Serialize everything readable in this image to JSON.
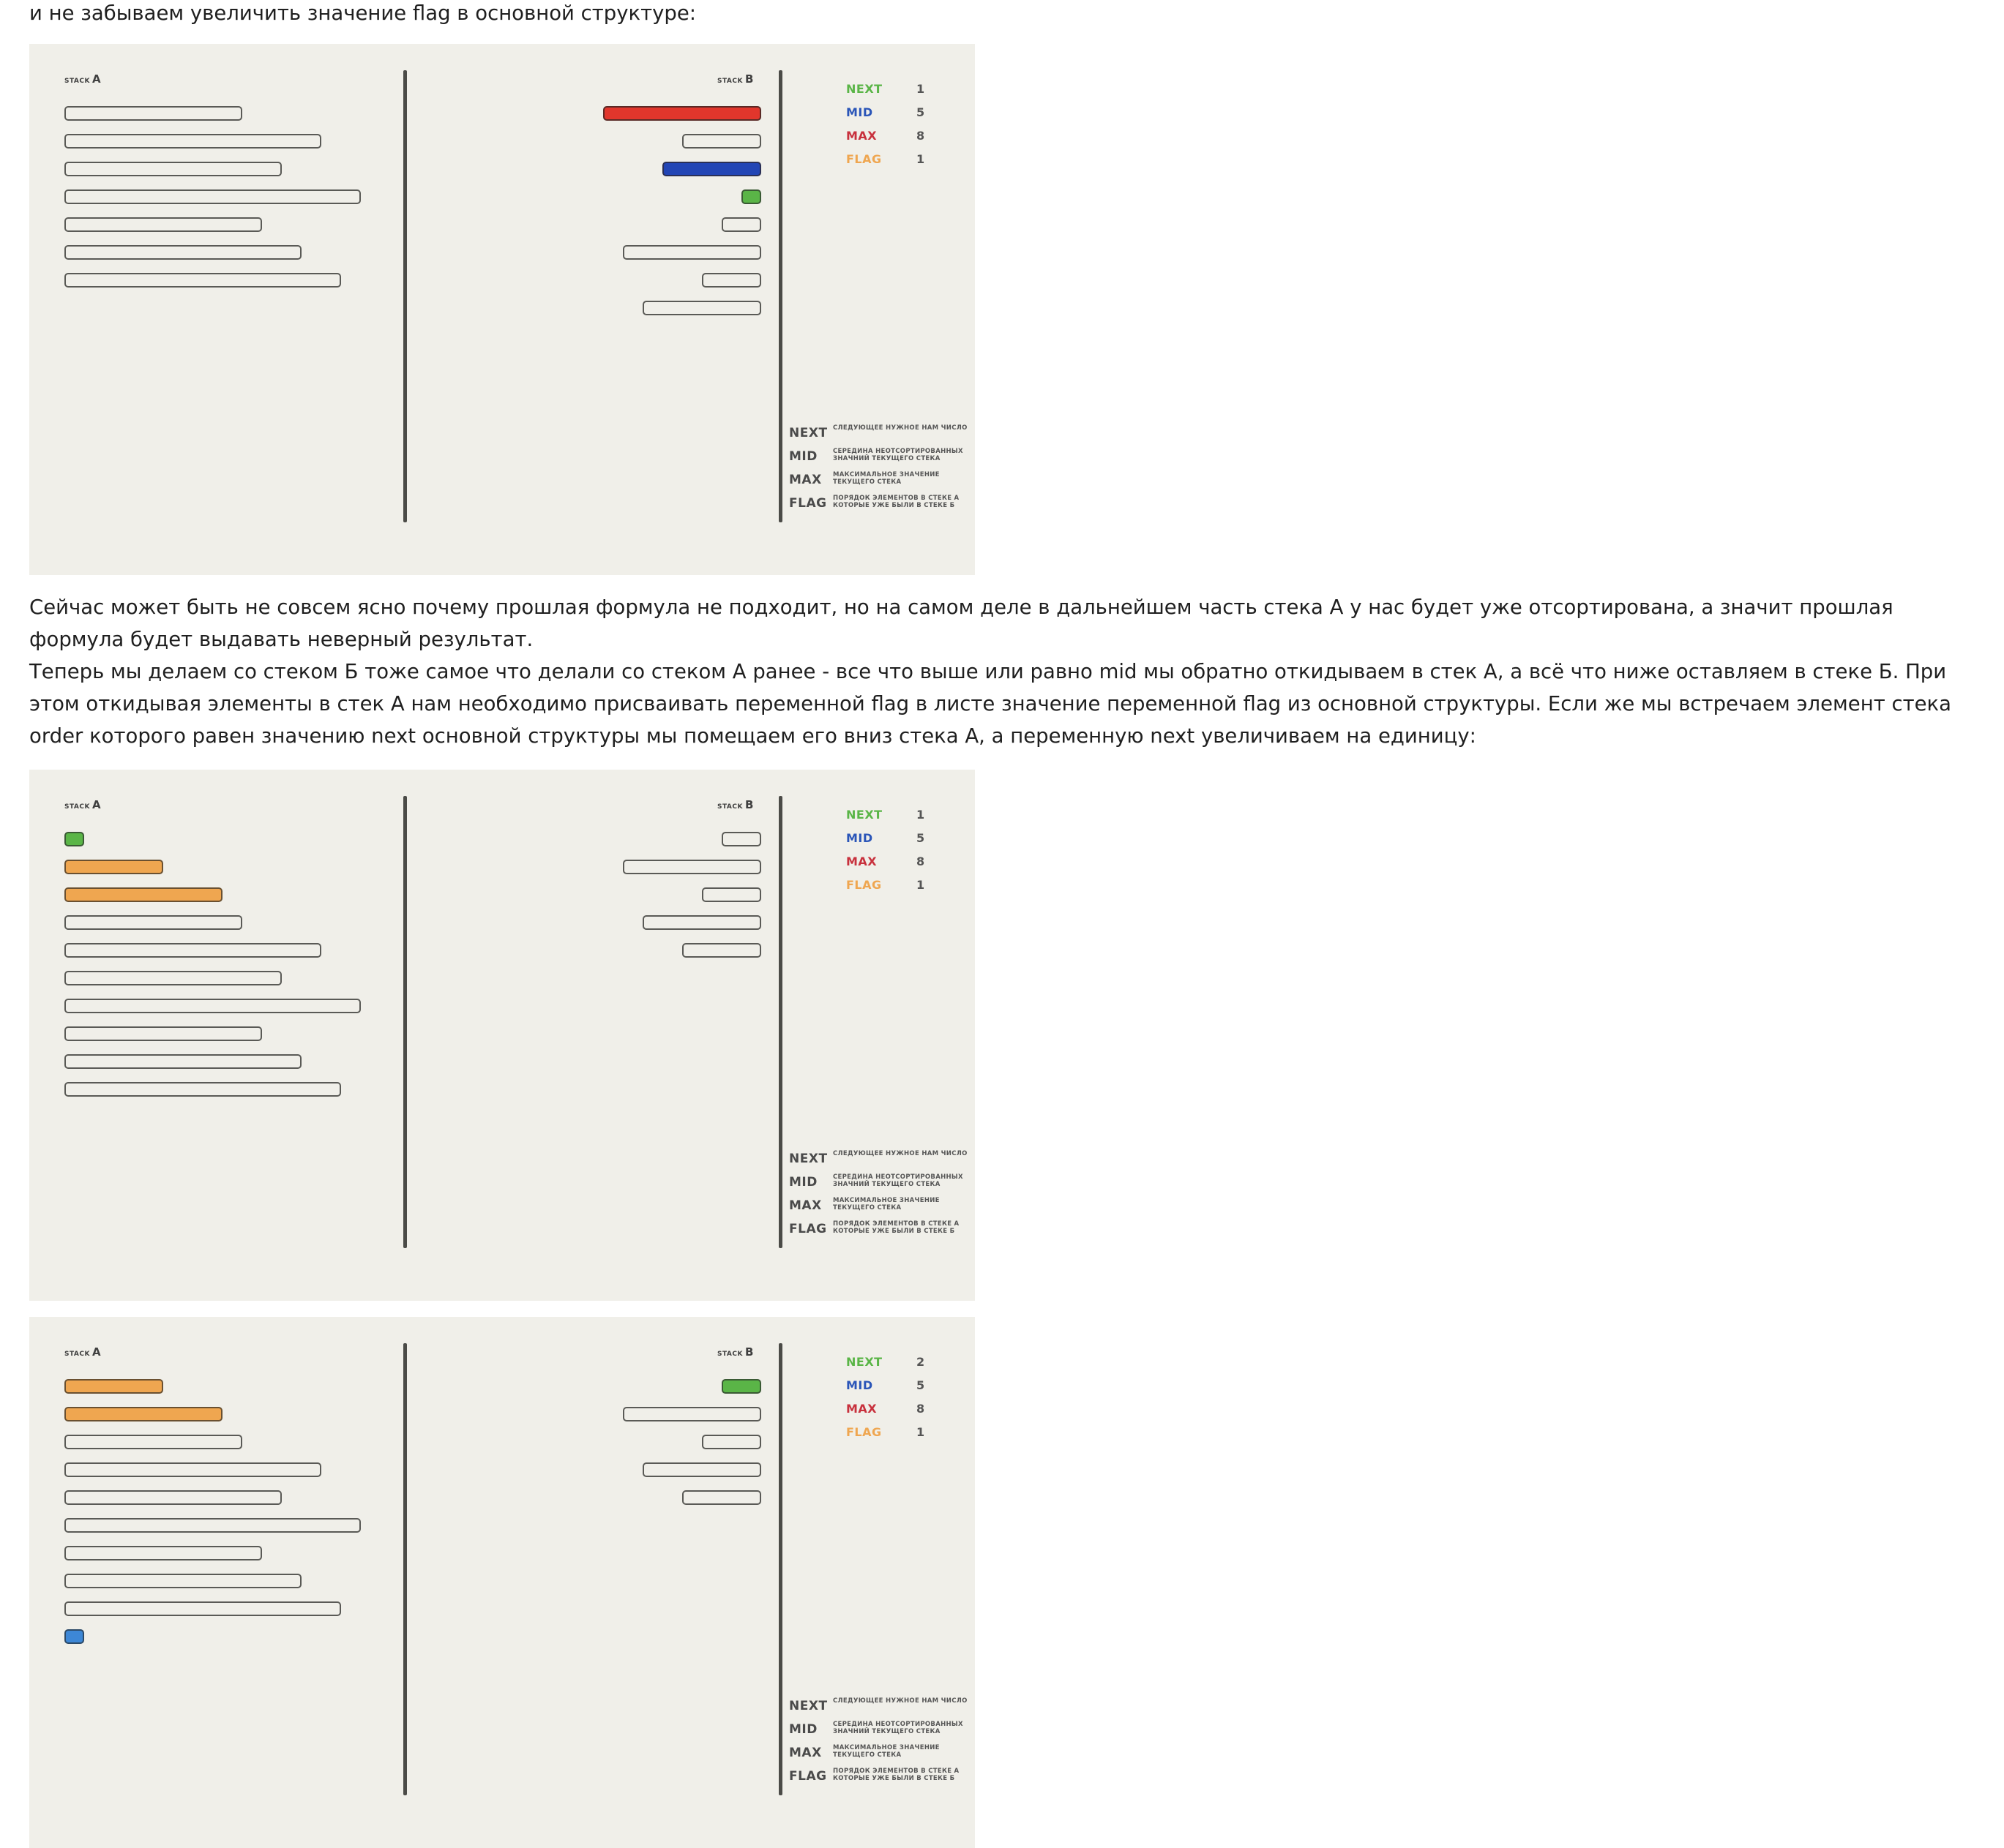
{
  "text": {
    "intro": "и не забываем увеличить значение flag в основной структуре:",
    "para2": "Сейчас может быть не совсем ясно почему прошлая формула не подходит, но на самом деле в дальнейшем часть стека А у нас будет уже отсортирована, а значит прошлая формула будет выдавать неверный результат.\nТеперь мы делаем со стеком Б тоже самое что делали со стеком А ранее - все что выше или равно mid мы обратно откидываем в стек А, а всё что ниже оставляем в стеке Б. При этом откидывая элементы в стек А нам необходимо присваивать переменной flag в листе значение переменной flag из основной структуры. Если же мы встречаем элемент стека order которого равен значению next основной структуры мы помещаем его вниз стека А, а переменную next увеличиваем на единицу:"
  },
  "colors": {
    "next": "#5ab547",
    "mid": "#2a55b8",
    "max": "#c8313d",
    "flag": "#efa650",
    "bg": "#f0efe9"
  },
  "labels": {
    "stack_small": "STACK",
    "stack_a": "A",
    "stack_b": "B"
  },
  "legend": [
    {
      "key": "NEXT",
      "desc": "СЛЕДУЮЩЕЕ НУЖНОЕ НАМ ЧИСЛО"
    },
    {
      "key": "MID",
      "desc": "СЕРЕДИНА НЕОТСОРТИРОВАННЫХ ЗНАЧНИЙ ТЕКУЩЕГО СТЕКА"
    },
    {
      "key": "MAX",
      "desc": "МАКСИМАЛЬНОЕ ЗНАЧЕНИЕ ТЕКУЩЕГО СТЕКА"
    },
    {
      "key": "FLAG",
      "desc": "ПОРЯДОК ЭЛЕМЕНТОВ В СТЕКЕ А КОТОРЫЕ УЖЕ БЫЛИ В СТЕКЕ Б"
    }
  ],
  "figures": [
    {
      "vars": {
        "next": "1",
        "mid": "5",
        "max": "8",
        "flag": "1"
      },
      "stack_a": [
        {
          "v": 9,
          "c": ""
        },
        {
          "v": 13,
          "c": ""
        },
        {
          "v": 11,
          "c": ""
        },
        {
          "v": 15,
          "c": ""
        },
        {
          "v": 10,
          "c": ""
        },
        {
          "v": 12,
          "c": ""
        },
        {
          "v": 14,
          "c": ""
        }
      ],
      "stack_b": [
        {
          "v": 8,
          "c": "red"
        },
        {
          "v": 4,
          "c": ""
        },
        {
          "v": 5,
          "c": "blue"
        },
        {
          "v": 1,
          "c": "green"
        },
        {
          "v": 2,
          "c": ""
        },
        {
          "v": 7,
          "c": ""
        },
        {
          "v": 3,
          "c": ""
        },
        {
          "v": 6,
          "c": ""
        }
      ]
    },
    {
      "vars": {
        "next": "1",
        "mid": "5",
        "max": "8",
        "flag": "1"
      },
      "stack_a": [
        {
          "v": 1,
          "c": "green"
        },
        {
          "v": 5,
          "c": "orange"
        },
        {
          "v": 8,
          "c": "orange"
        },
        {
          "v": 9,
          "c": ""
        },
        {
          "v": 13,
          "c": ""
        },
        {
          "v": 11,
          "c": ""
        },
        {
          "v": 15,
          "c": ""
        },
        {
          "v": 10,
          "c": ""
        },
        {
          "v": 12,
          "c": ""
        },
        {
          "v": 14,
          "c": ""
        }
      ],
      "stack_b": [
        {
          "v": 2,
          "c": ""
        },
        {
          "v": 7,
          "c": ""
        },
        {
          "v": 3,
          "c": ""
        },
        {
          "v": 6,
          "c": ""
        },
        {
          "v": 4,
          "c": ""
        }
      ]
    },
    {
      "vars": {
        "next": "2",
        "mid": "5",
        "max": "8",
        "flag": "1"
      },
      "stack_a": [
        {
          "v": 5,
          "c": "orange"
        },
        {
          "v": 8,
          "c": "orange"
        },
        {
          "v": 9,
          "c": ""
        },
        {
          "v": 13,
          "c": ""
        },
        {
          "v": 11,
          "c": ""
        },
        {
          "v": 15,
          "c": ""
        },
        {
          "v": 10,
          "c": ""
        },
        {
          "v": 12,
          "c": ""
        },
        {
          "v": 14,
          "c": ""
        },
        {
          "v": 1,
          "c": "lightblue"
        }
      ],
      "stack_b": [
        {
          "v": 2,
          "c": "green"
        },
        {
          "v": 7,
          "c": ""
        },
        {
          "v": 3,
          "c": ""
        },
        {
          "v": 6,
          "c": ""
        },
        {
          "v": 4,
          "c": ""
        }
      ]
    }
  ]
}
